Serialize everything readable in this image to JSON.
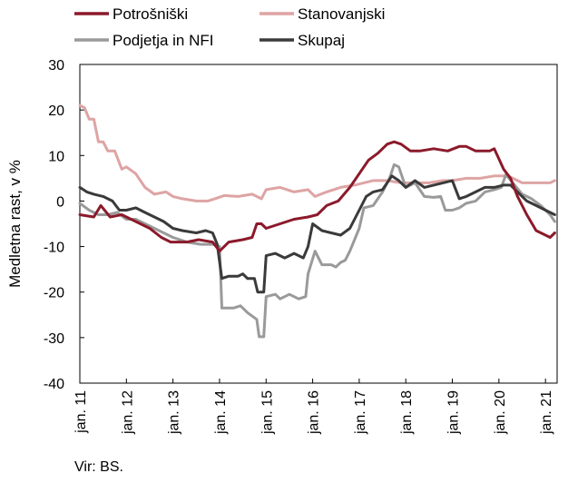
{
  "chart_data": {
    "type": "line",
    "ylabel": "Medletna rast, v %",
    "ylim": [
      -40,
      30
    ],
    "yticks": [
      "30",
      "20",
      "10",
      "0",
      "-10",
      "-20",
      "-30",
      "-40"
    ],
    "xlim": [
      2011.0,
      2021.25
    ],
    "x_ticks": [
      {
        "label": "jan. 11",
        "x": 2011
      },
      {
        "label": "jan. 12",
        "x": 2012
      },
      {
        "label": "jan. 13",
        "x": 2013
      },
      {
        "label": "jan. 14",
        "x": 2014
      },
      {
        "label": "jan. 15",
        "x": 2015
      },
      {
        "label": "jan. 16",
        "x": 2016
      },
      {
        "label": "jan. 17",
        "x": 2017
      },
      {
        "label": "jan. 18",
        "x": 2018
      },
      {
        "label": "jan. 19",
        "x": 2019
      },
      {
        "label": "jan. 20",
        "x": 2020
      },
      {
        "label": "jan. 21",
        "x": 2021
      }
    ],
    "grid": false,
    "legend_position": "top",
    "series": [
      {
        "name": "Potrošniški",
        "color": "#8b1a2b",
        "points": [
          [
            2011.0,
            -3
          ],
          [
            2011.3,
            -3.5
          ],
          [
            2011.45,
            -1
          ],
          [
            2011.65,
            -3.5
          ],
          [
            2011.9,
            -3
          ],
          [
            2012.2,
            -4.5
          ],
          [
            2012.5,
            -6
          ],
          [
            2012.75,
            -8
          ],
          [
            2012.95,
            -9
          ],
          [
            2013.3,
            -9
          ],
          [
            2013.55,
            -8.5
          ],
          [
            2013.85,
            -9
          ],
          [
            2014.0,
            -11
          ],
          [
            2014.2,
            -9
          ],
          [
            2014.5,
            -8.5
          ],
          [
            2014.7,
            -8
          ],
          [
            2014.8,
            -5
          ],
          [
            2014.9,
            -5
          ],
          [
            2015.0,
            -6
          ],
          [
            2015.3,
            -5
          ],
          [
            2015.6,
            -4
          ],
          [
            2015.9,
            -3.5
          ],
          [
            2016.1,
            -3
          ],
          [
            2016.3,
            -1
          ],
          [
            2016.55,
            0
          ],
          [
            2016.8,
            3
          ],
          [
            2017.0,
            6
          ],
          [
            2017.2,
            9
          ],
          [
            2017.4,
            10.5
          ],
          [
            2017.6,
            12.5
          ],
          [
            2017.75,
            13
          ],
          [
            2017.9,
            12.5
          ],
          [
            2018.1,
            11
          ],
          [
            2018.3,
            11
          ],
          [
            2018.6,
            11.5
          ],
          [
            2018.9,
            11
          ],
          [
            2019.15,
            12
          ],
          [
            2019.3,
            12
          ],
          [
            2019.5,
            11
          ],
          [
            2019.8,
            11
          ],
          [
            2019.9,
            11.5
          ],
          [
            2020.1,
            7
          ],
          [
            2020.25,
            5
          ],
          [
            2020.4,
            1
          ],
          [
            2020.6,
            -3
          ],
          [
            2020.8,
            -6.5
          ],
          [
            2021.0,
            -7.5
          ],
          [
            2021.1,
            -8
          ],
          [
            2021.2,
            -7
          ]
        ]
      },
      {
        "name": "Stanovanjski",
        "color": "#dea4a4",
        "points": [
          [
            2011.0,
            21
          ],
          [
            2011.1,
            20.5
          ],
          [
            2011.2,
            18
          ],
          [
            2011.3,
            18
          ],
          [
            2011.4,
            13
          ],
          [
            2011.5,
            13
          ],
          [
            2011.6,
            11
          ],
          [
            2011.75,
            11
          ],
          [
            2011.9,
            7
          ],
          [
            2012.0,
            7.5
          ],
          [
            2012.2,
            6
          ],
          [
            2012.4,
            3
          ],
          [
            2012.6,
            1.5
          ],
          [
            2012.85,
            2
          ],
          [
            2013.0,
            1
          ],
          [
            2013.2,
            0.5
          ],
          [
            2013.5,
            0
          ],
          [
            2013.75,
            0
          ],
          [
            2013.9,
            0.5
          ],
          [
            2014.1,
            1.2
          ],
          [
            2014.4,
            1
          ],
          [
            2014.7,
            1.5
          ],
          [
            2014.9,
            0.5
          ],
          [
            2015.0,
            2.5
          ],
          [
            2015.3,
            3
          ],
          [
            2015.6,
            2
          ],
          [
            2015.9,
            2.5
          ],
          [
            2016.05,
            1
          ],
          [
            2016.3,
            2
          ],
          [
            2016.6,
            3
          ],
          [
            2016.9,
            3.5
          ],
          [
            2017.1,
            4
          ],
          [
            2017.3,
            4.5
          ],
          [
            2017.6,
            4.5
          ],
          [
            2017.9,
            4
          ],
          [
            2018.2,
            4
          ],
          [
            2018.5,
            4
          ],
          [
            2018.8,
            4.5
          ],
          [
            2019.0,
            4.5
          ],
          [
            2019.3,
            5
          ],
          [
            2019.6,
            5
          ],
          [
            2019.9,
            5.5
          ],
          [
            2020.2,
            5.5
          ],
          [
            2020.5,
            4
          ],
          [
            2020.8,
            4
          ],
          [
            2021.0,
            4
          ],
          [
            2021.1,
            4
          ],
          [
            2021.2,
            4.5
          ]
        ]
      },
      {
        "name": "Podjetja in NFI",
        "color": "#9a9a9a",
        "points": [
          [
            2011.0,
            -0.5
          ],
          [
            2011.2,
            -2
          ],
          [
            2011.4,
            -3
          ],
          [
            2011.6,
            -3
          ],
          [
            2011.8,
            -2.5
          ],
          [
            2012.0,
            -4
          ],
          [
            2012.2,
            -4
          ],
          [
            2012.4,
            -5
          ],
          [
            2012.6,
            -6
          ],
          [
            2012.8,
            -7
          ],
          [
            2013.0,
            -8
          ],
          [
            2013.3,
            -9
          ],
          [
            2013.6,
            -9.5
          ],
          [
            2013.85,
            -9.5
          ],
          [
            2014.0,
            -10
          ],
          [
            2014.05,
            -23.5
          ],
          [
            2014.3,
            -23.5
          ],
          [
            2014.45,
            -23
          ],
          [
            2014.6,
            -24.5
          ],
          [
            2014.8,
            -26
          ],
          [
            2014.85,
            -29.8
          ],
          [
            2014.95,
            -29.8
          ],
          [
            2015.0,
            -21
          ],
          [
            2015.2,
            -20.5
          ],
          [
            2015.3,
            -21.5
          ],
          [
            2015.5,
            -20.5
          ],
          [
            2015.7,
            -21.5
          ],
          [
            2015.85,
            -21
          ],
          [
            2015.9,
            -16
          ],
          [
            2016.05,
            -11
          ],
          [
            2016.2,
            -14
          ],
          [
            2016.4,
            -14
          ],
          [
            2016.5,
            -14.5
          ],
          [
            2016.6,
            -13.5
          ],
          [
            2016.7,
            -13
          ],
          [
            2016.8,
            -11
          ],
          [
            2017.0,
            -6
          ],
          [
            2017.1,
            -1.5
          ],
          [
            2017.3,
            -1
          ],
          [
            2017.5,
            2
          ],
          [
            2017.65,
            5
          ],
          [
            2017.75,
            8
          ],
          [
            2017.85,
            7.5
          ],
          [
            2018.0,
            3
          ],
          [
            2018.2,
            4
          ],
          [
            2018.4,
            1
          ],
          [
            2018.6,
            0.8
          ],
          [
            2018.75,
            1
          ],
          [
            2018.85,
            -2
          ],
          [
            2019.0,
            -2
          ],
          [
            2019.15,
            -1.5
          ],
          [
            2019.3,
            -0.5
          ],
          [
            2019.5,
            0
          ],
          [
            2019.7,
            2
          ],
          [
            2019.9,
            2.5
          ],
          [
            2020.05,
            3
          ],
          [
            2020.15,
            5.8
          ],
          [
            2020.3,
            4
          ],
          [
            2020.5,
            1.5
          ],
          [
            2020.7,
            0.5
          ],
          [
            2020.9,
            -1
          ],
          [
            2021.1,
            -3
          ],
          [
            2021.2,
            -4.5
          ]
        ]
      },
      {
        "name": "Skupaj",
        "color": "#3a3a3a",
        "points": [
          [
            2011.0,
            3
          ],
          [
            2011.15,
            2
          ],
          [
            2011.3,
            1.5
          ],
          [
            2011.5,
            1
          ],
          [
            2011.7,
            0
          ],
          [
            2011.85,
            -2
          ],
          [
            2012.0,
            -2
          ],
          [
            2012.2,
            -1.5
          ],
          [
            2012.4,
            -2.5
          ],
          [
            2012.6,
            -3.5
          ],
          [
            2012.8,
            -4.5
          ],
          [
            2013.0,
            -6
          ],
          [
            2013.2,
            -6.5
          ],
          [
            2013.5,
            -7
          ],
          [
            2013.7,
            -6.5
          ],
          [
            2013.85,
            -7
          ],
          [
            2013.95,
            -9.5
          ],
          [
            2014.05,
            -17
          ],
          [
            2014.2,
            -16.5
          ],
          [
            2014.4,
            -16.5
          ],
          [
            2014.5,
            -16
          ],
          [
            2014.6,
            -17
          ],
          [
            2014.75,
            -17
          ],
          [
            2014.82,
            -20
          ],
          [
            2014.95,
            -20
          ],
          [
            2015.0,
            -12
          ],
          [
            2015.2,
            -11.5
          ],
          [
            2015.4,
            -12.5
          ],
          [
            2015.6,
            -11.5
          ],
          [
            2015.8,
            -12.5
          ],
          [
            2015.9,
            -10
          ],
          [
            2016.0,
            -5
          ],
          [
            2016.2,
            -6.5
          ],
          [
            2016.4,
            -7
          ],
          [
            2016.6,
            -7.5
          ],
          [
            2016.8,
            -6
          ],
          [
            2017.0,
            -2
          ],
          [
            2017.15,
            1
          ],
          [
            2017.3,
            2
          ],
          [
            2017.5,
            2.5
          ],
          [
            2017.7,
            5.5
          ],
          [
            2017.85,
            4.5
          ],
          [
            2018.0,
            3
          ],
          [
            2018.2,
            4.5
          ],
          [
            2018.4,
            3
          ],
          [
            2018.6,
            3.5
          ],
          [
            2018.8,
            4
          ],
          [
            2019.0,
            4.5
          ],
          [
            2019.15,
            0.5
          ],
          [
            2019.3,
            1
          ],
          [
            2019.5,
            2
          ],
          [
            2019.7,
            3
          ],
          [
            2019.9,
            3
          ],
          [
            2020.1,
            3.5
          ],
          [
            2020.25,
            3.5
          ],
          [
            2020.4,
            2
          ],
          [
            2020.6,
            0
          ],
          [
            2020.8,
            -1
          ],
          [
            2021.0,
            -2
          ],
          [
            2021.2,
            -3
          ]
        ]
      }
    ]
  },
  "source_note": "Vir: BS."
}
